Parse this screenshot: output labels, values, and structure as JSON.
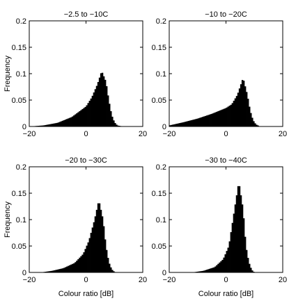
{
  "chart_data": [
    {
      "type": "bar",
      "title": "−2.5 to −10C",
      "ylabel": "Frequency",
      "xlabel": "",
      "xlim": [
        -20,
        20
      ],
      "ylim": [
        0,
        0.2
      ],
      "xticks": [
        "−20",
        "0",
        "20"
      ],
      "yticks": [
        "0",
        "0.05",
        "0.1",
        "0.15",
        "0.2"
      ],
      "bin_width": 0.5,
      "peak": {
        "x": 5.5,
        "y": 0.105
      },
      "values": [
        {
          "x": -20,
          "y": 0.0
        },
        {
          "x": -15,
          "y": 0.002
        },
        {
          "x": -10,
          "y": 0.007
        },
        {
          "x": -5,
          "y": 0.018
        },
        {
          "x": 0,
          "y": 0.038
        },
        {
          "x": 2,
          "y": 0.055
        },
        {
          "x": 4,
          "y": 0.08
        },
        {
          "x": 5.5,
          "y": 0.105
        },
        {
          "x": 7,
          "y": 0.085
        },
        {
          "x": 8,
          "y": 0.05
        },
        {
          "x": 9,
          "y": 0.022
        },
        {
          "x": 10,
          "y": 0.008
        },
        {
          "x": 11,
          "y": 0.002
        },
        {
          "x": 13,
          "y": 0.0
        }
      ]
    },
    {
      "type": "bar",
      "title": "−10 to −20C",
      "ylabel": "",
      "xlabel": "",
      "xlim": [
        -20,
        20
      ],
      "ylim": [
        0,
        0.2
      ],
      "xticks": [
        "−20",
        "0",
        "20"
      ],
      "yticks": [
        "0",
        "0.05",
        "0.1",
        "0.15",
        "0.2"
      ],
      "bin_width": 0.5,
      "peak": {
        "x": 6,
        "y": 0.092
      },
      "values": [
        {
          "x": -20,
          "y": 0.002
        },
        {
          "x": -15,
          "y": 0.008
        },
        {
          "x": -10,
          "y": 0.015
        },
        {
          "x": -5,
          "y": 0.024
        },
        {
          "x": 0,
          "y": 0.035
        },
        {
          "x": 2,
          "y": 0.042
        },
        {
          "x": 4,
          "y": 0.06
        },
        {
          "x": 6,
          "y": 0.092
        },
        {
          "x": 7.5,
          "y": 0.06
        },
        {
          "x": 8.5,
          "y": 0.03
        },
        {
          "x": 9.5,
          "y": 0.012
        },
        {
          "x": 10.5,
          "y": 0.004
        },
        {
          "x": 12,
          "y": 0.0
        }
      ]
    },
    {
      "type": "bar",
      "title": "−20 to −30C",
      "ylabel": "Frequency",
      "xlabel": "Colour ratio [dB]",
      "xlim": [
        -20,
        20
      ],
      "ylim": [
        0,
        0.2
      ],
      "xticks": [
        "−20",
        "0",
        "20"
      ],
      "yticks": [
        "0",
        "0.05",
        "0.1",
        "0.15",
        "0.2"
      ],
      "bin_width": 0.5,
      "peak": {
        "x": 4.5,
        "y": 0.137
      },
      "values": [
        {
          "x": -16,
          "y": 0.0
        },
        {
          "x": -12,
          "y": 0.003
        },
        {
          "x": -8,
          "y": 0.008
        },
        {
          "x": -4,
          "y": 0.018
        },
        {
          "x": -1,
          "y": 0.035
        },
        {
          "x": 1,
          "y": 0.06
        },
        {
          "x": 3,
          "y": 0.1
        },
        {
          "x": 4.5,
          "y": 0.137
        },
        {
          "x": 6,
          "y": 0.1
        },
        {
          "x": 7,
          "y": 0.05
        },
        {
          "x": 8,
          "y": 0.02
        },
        {
          "x": 9,
          "y": 0.006
        },
        {
          "x": 10,
          "y": 0.001
        },
        {
          "x": 11,
          "y": 0.0
        }
      ]
    },
    {
      "type": "bar",
      "title": "−30 to −40C",
      "ylabel": "",
      "xlabel": "Colour ratio [dB]",
      "xlim": [
        -20,
        20
      ],
      "ylim": [
        0,
        0.2
      ],
      "xticks": [
        "−20",
        "0",
        "20"
      ],
      "yticks": [
        "0",
        "0.05",
        "0.1",
        "0.15",
        "0.2"
      ],
      "bin_width": 0.5,
      "peak": {
        "x": 4.5,
        "y": 0.172
      },
      "values": [
        {
          "x": -12,
          "y": 0.0
        },
        {
          "x": -8,
          "y": 0.003
        },
        {
          "x": -4,
          "y": 0.01
        },
        {
          "x": -1,
          "y": 0.025
        },
        {
          "x": 1,
          "y": 0.05
        },
        {
          "x": 3,
          "y": 0.12
        },
        {
          "x": 4.5,
          "y": 0.172
        },
        {
          "x": 6,
          "y": 0.12
        },
        {
          "x": 7,
          "y": 0.05
        },
        {
          "x": 8,
          "y": 0.02
        },
        {
          "x": 9,
          "y": 0.005
        },
        {
          "x": 10,
          "y": 0.0
        }
      ]
    }
  ]
}
